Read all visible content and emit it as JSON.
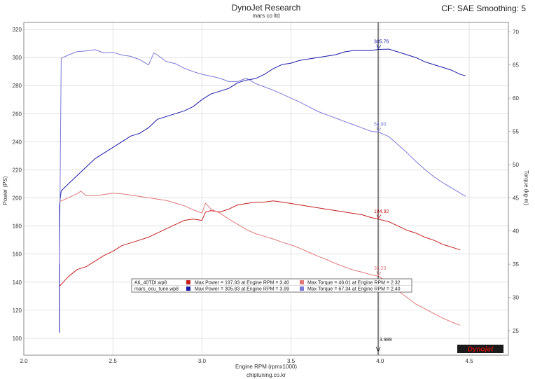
{
  "header": {
    "title": "DynoJet Research",
    "subtitle": "mars co ltd",
    "cf_label": "CF: SAE Smoothing: 5"
  },
  "footer": {
    "website": "chiptuning.co.kr"
  },
  "logo": {
    "text": "Dynojet"
  },
  "colors": {
    "power_stock": "#c42020",
    "power_tuned": "#1a1aa8",
    "torque_stock": "#e07878",
    "torque_tuned": "#7a7ad8",
    "cursor": "#111111",
    "grid": "#cfcfcf"
  },
  "chart_data": {
    "type": "line",
    "xlabel": "Engine RPM (rpmx1000)",
    "ylabel": "Power (PS)",
    "y2label": "Torque (kg-m)",
    "xlim": [
      2.0,
      4.72
    ],
    "ylim": [
      88,
      325
    ],
    "y2lim": [
      21.3,
      71.4
    ],
    "xticks": [
      "2.0",
      "2.5",
      "3.0",
      "3.5",
      "4.0",
      "4.5"
    ],
    "yticks": [
      "100",
      "120",
      "140",
      "160",
      "180",
      "200",
      "220",
      "240",
      "260",
      "280",
      "300",
      "320"
    ],
    "y2ticks": [
      "25",
      "30",
      "35",
      "40",
      "45",
      "50",
      "55",
      "60",
      "65",
      "70"
    ],
    "grid": true,
    "cursor": {
      "x": 3.989,
      "label": "3.989"
    },
    "cursor_values": [
      {
        "series": "power_tuned",
        "value": 305.76,
        "label": "305.76"
      },
      {
        "series": "torque_tuned",
        "value": 54.9,
        "label": "54.90"
      },
      {
        "series": "power_stock",
        "value": 184.92,
        "label": "184.92"
      },
      {
        "series": "torque_stock",
        "value": 33.2,
        "label": "33.20"
      }
    ],
    "series": [
      {
        "key": "power_tuned",
        "axis": "left",
        "x": [
          2.2,
          2.2,
          2.21,
          2.25,
          2.3,
          2.35,
          2.4,
          2.45,
          2.5,
          2.55,
          2.6,
          2.65,
          2.7,
          2.75,
          2.8,
          2.85,
          2.9,
          2.95,
          3.0,
          3.05,
          3.1,
          3.15,
          3.2,
          3.25,
          3.3,
          3.35,
          3.4,
          3.45,
          3.5,
          3.55,
          3.6,
          3.65,
          3.7,
          3.75,
          3.8,
          3.85,
          3.9,
          3.95,
          3.99,
          4.05,
          4.1,
          4.15,
          4.2,
          4.25,
          4.3,
          4.35,
          4.4,
          4.45,
          4.48
        ],
        "values": [
          104,
          195,
          205,
          210,
          216,
          222,
          228,
          232,
          236,
          240,
          244,
          246,
          250,
          256,
          258,
          260,
          262,
          265,
          270,
          274,
          276,
          278,
          282,
          284,
          285,
          288,
          292,
          295,
          296,
          298,
          299,
          300,
          301,
          302,
          304,
          305,
          305,
          305,
          305.8,
          306,
          304,
          302,
          300,
          297,
          295,
          293,
          291,
          288,
          287
        ]
      },
      {
        "key": "torque_tuned",
        "axis": "right",
        "x": [
          2.2,
          2.21,
          2.25,
          2.3,
          2.35,
          2.4,
          2.45,
          2.5,
          2.55,
          2.6,
          2.65,
          2.7,
          2.73,
          2.75,
          2.8,
          2.85,
          2.9,
          2.95,
          3.0,
          3.05,
          3.1,
          3.15,
          3.2,
          3.25,
          3.3,
          3.35,
          3.4,
          3.45,
          3.5,
          3.55,
          3.6,
          3.65,
          3.7,
          3.75,
          3.8,
          3.85,
          3.9,
          3.95,
          3.99,
          4.05,
          4.1,
          4.15,
          4.2,
          4.25,
          4.3,
          4.35,
          4.4,
          4.45,
          4.48
        ],
        "values": [
          35,
          66.0,
          66.5,
          67.0,
          67.1,
          67.3,
          66.8,
          66.9,
          66.5,
          66.3,
          65.8,
          65.0,
          66.8,
          66.5,
          65.5,
          65.2,
          64.5,
          64.0,
          63.6,
          63.3,
          63.0,
          62.5,
          62.5,
          63.0,
          62.2,
          61.7,
          61.2,
          60.6,
          60.0,
          59.4,
          58.7,
          58.0,
          57.5,
          57.0,
          56.5,
          56.0,
          55.5,
          55.0,
          54.9,
          54.2,
          53.0,
          51.8,
          50.5,
          49.3,
          48.2,
          47.3,
          46.5,
          45.7,
          45.2
        ]
      },
      {
        "key": "power_stock",
        "axis": "left",
        "x": [
          2.2,
          2.25,
          2.3,
          2.35,
          2.4,
          2.45,
          2.5,
          2.55,
          2.6,
          2.65,
          2.7,
          2.75,
          2.8,
          2.85,
          2.9,
          2.95,
          3.0,
          3.02,
          3.05,
          3.1,
          3.15,
          3.2,
          3.25,
          3.3,
          3.35,
          3.4,
          3.45,
          3.5,
          3.55,
          3.6,
          3.65,
          3.7,
          3.75,
          3.8,
          3.85,
          3.9,
          3.95,
          3.99,
          4.05,
          4.1,
          4.15,
          4.2,
          4.25,
          4.3,
          4.35,
          4.4,
          4.45
        ],
        "values": [
          137,
          144,
          149,
          151,
          155,
          159,
          162,
          166,
          168,
          170,
          172,
          175,
          178,
          181,
          184,
          185,
          184,
          190,
          191,
          190,
          192,
          195,
          196,
          197,
          197,
          197.9,
          197,
          196,
          195,
          194,
          193,
          192,
          191,
          190,
          189,
          188,
          186,
          184.9,
          183,
          180,
          177,
          175,
          172,
          170,
          167,
          165,
          163
        ]
      },
      {
        "key": "torque_stock",
        "axis": "right",
        "x": [
          2.2,
          2.25,
          2.3,
          2.32,
          2.35,
          2.4,
          2.45,
          2.5,
          2.55,
          2.6,
          2.65,
          2.7,
          2.75,
          2.8,
          2.85,
          2.9,
          2.95,
          3.0,
          3.02,
          3.05,
          3.1,
          3.15,
          3.2,
          3.25,
          3.3,
          3.35,
          3.4,
          3.45,
          3.5,
          3.55,
          3.6,
          3.65,
          3.7,
          3.75,
          3.8,
          3.85,
          3.9,
          3.95,
          3.99,
          4.05,
          4.1,
          4.15,
          4.2,
          4.25,
          4.3,
          4.35,
          4.4,
          4.45
        ],
        "values": [
          44.4,
          45.0,
          45.6,
          46.0,
          45.3,
          45.3,
          45.5,
          45.7,
          45.6,
          45.4,
          45.2,
          45.0,
          44.8,
          44.6,
          44.2,
          43.8,
          43.2,
          42.7,
          44.2,
          43.3,
          42.7,
          41.8,
          41.0,
          40.2,
          39.6,
          39.2,
          38.8,
          38.3,
          37.9,
          37.4,
          36.8,
          36.2,
          35.7,
          35.1,
          34.6,
          34.1,
          33.8,
          33.4,
          33.2,
          32.2,
          31.0,
          30.0,
          29.0,
          28.3,
          27.6,
          26.9,
          26.3,
          25.8
        ]
      }
    ]
  },
  "legend": {
    "rows": [
      {
        "file": "A6_40TDI.wp8",
        "power_color": "#c42020",
        "power_text": "Max Power = 197.93 at Engine RPM = 3.40",
        "torque_color": "#e07878",
        "torque_text": "Max Torque = 46.01 at Engine RPM = 2.32"
      },
      {
        "file": "mars_ecu_tune.wp8",
        "power_color": "#1a1aa8",
        "power_text": "Max Power = 305.83 at Engine RPM = 3.99",
        "torque_color": "#7a7ad8",
        "torque_text": "Max Torque = 67.34 at Engine RPM = 2.40"
      }
    ]
  }
}
